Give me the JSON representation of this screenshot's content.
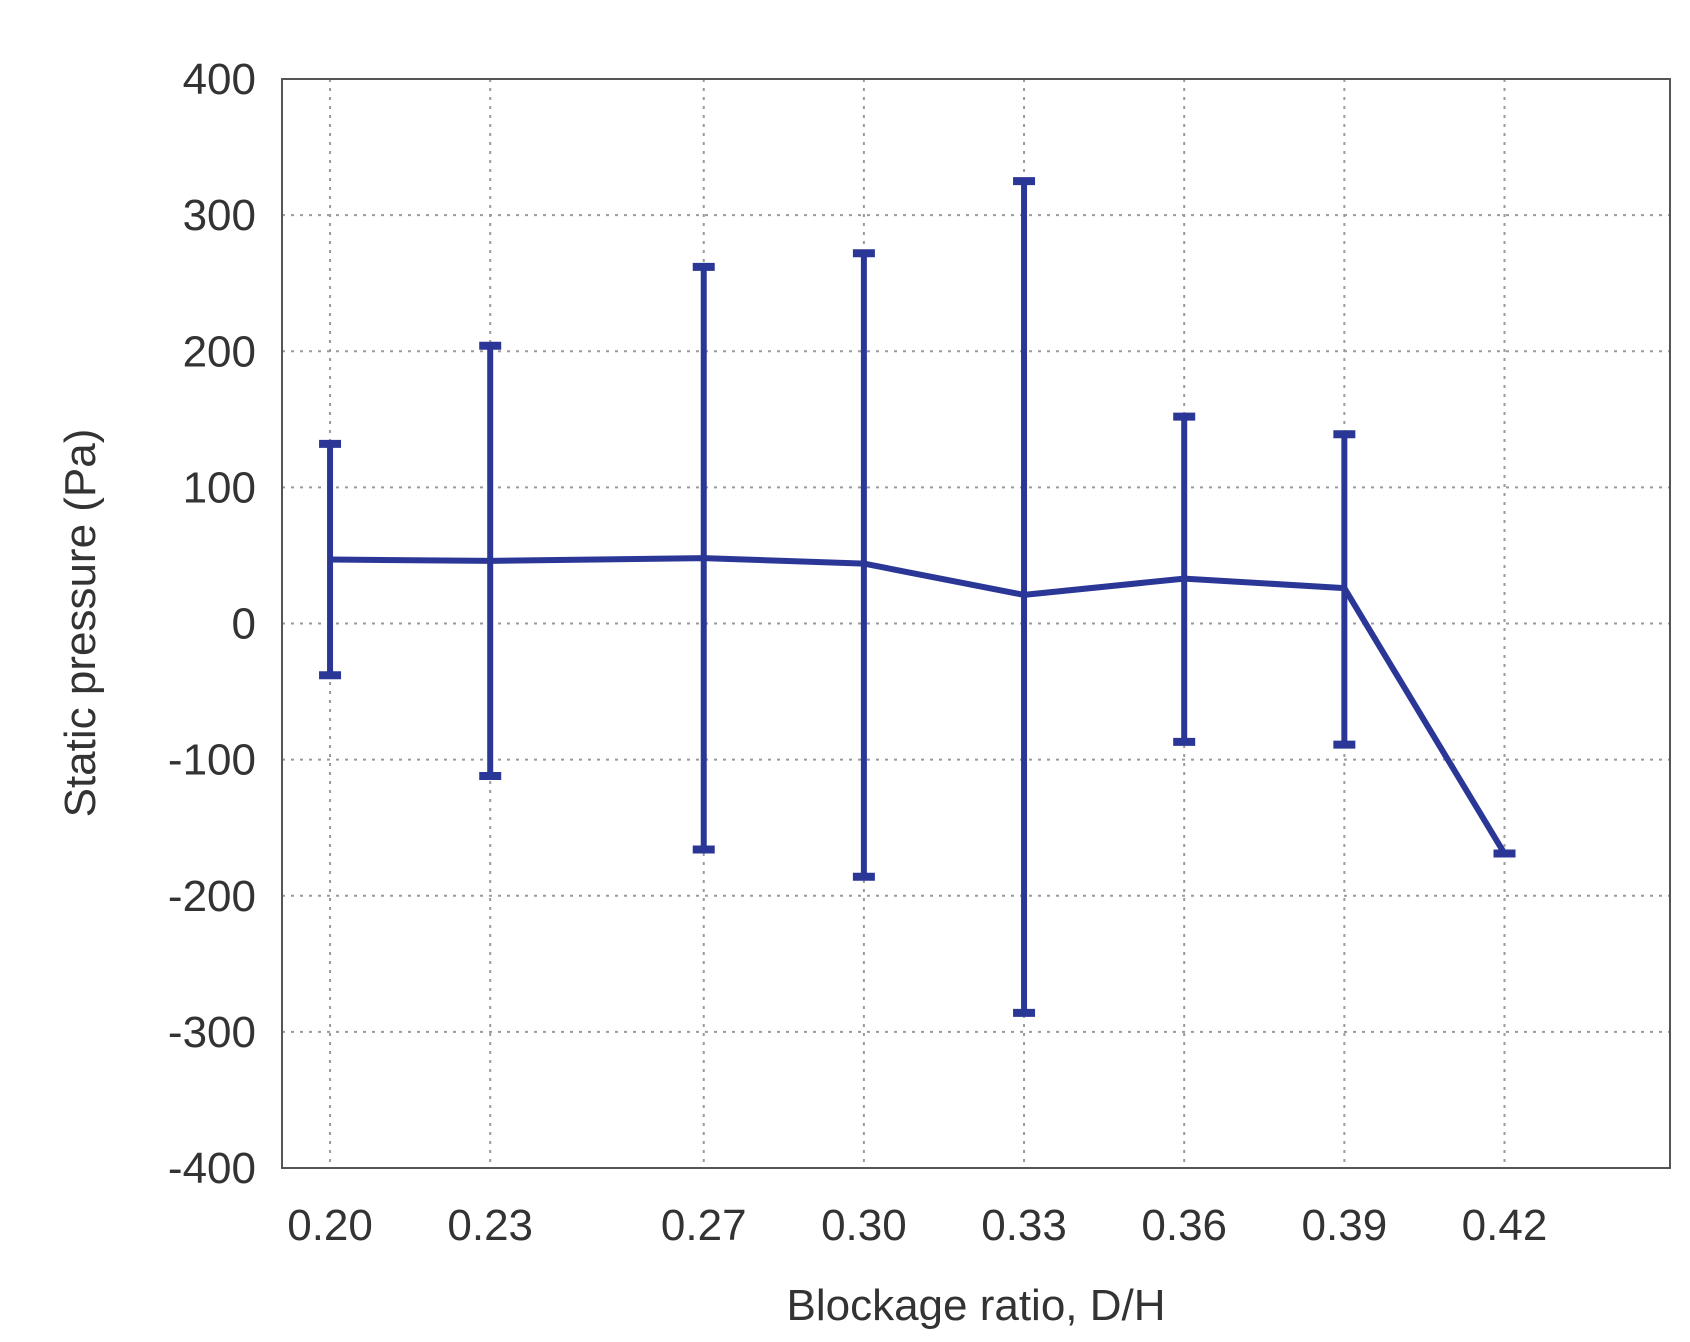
{
  "chart_data": {
    "type": "line",
    "title": "",
    "xlabel": "Blockage ratio, D/H",
    "ylabel": "Static pressure (Pa)",
    "ylim": [
      -400,
      400
    ],
    "grid": true,
    "y_ticks": [
      "400",
      "300",
      "200",
      "100",
      "0",
      "-100",
      "-200",
      "-300",
      "-400"
    ],
    "x_tick_labels": [
      "0.20",
      "0.23",
      "0.27",
      "0.30",
      "0.33",
      "0.36",
      "0.39",
      "0.42"
    ],
    "series": [
      {
        "x": [
          0.2,
          0.23,
          0.27,
          0.3,
          0.33,
          0.36,
          0.39,
          0.42
        ],
        "values": [
          47,
          46,
          48,
          44,
          21,
          33,
          26,
          -169
        ],
        "error_upper": [
          132,
          204,
          262,
          272,
          325,
          152,
          139,
          -169
        ],
        "error_lower": [
          -38,
          -112,
          -166,
          -186,
          -286,
          -87,
          -89,
          -169
        ]
      }
    ],
    "colors": {
      "series": "#2b3796",
      "grid": "#9a9a9a",
      "axis": "#555555",
      "text": "#333333"
    }
  }
}
